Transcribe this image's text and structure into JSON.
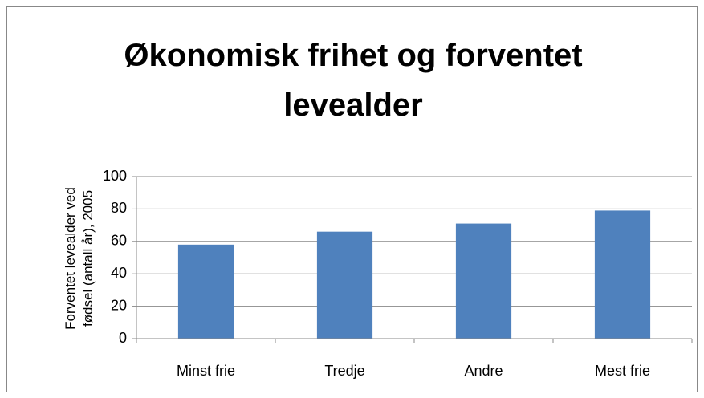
{
  "chart_data": {
    "type": "bar",
    "title": "Økonomisk frihet og forventet levealder",
    "ylabel": "Forventet levealder ved fødsel (antall år), 2005",
    "categories": [
      "Minst frie",
      "Tredje",
      "Andre",
      "Mest frie"
    ],
    "values": [
      58,
      66,
      71,
      79
    ],
    "color": "#4f81bd",
    "ylim": [
      0,
      100
    ],
    "yticks": [
      0,
      20,
      40,
      60,
      80,
      100
    ],
    "grid": true
  }
}
